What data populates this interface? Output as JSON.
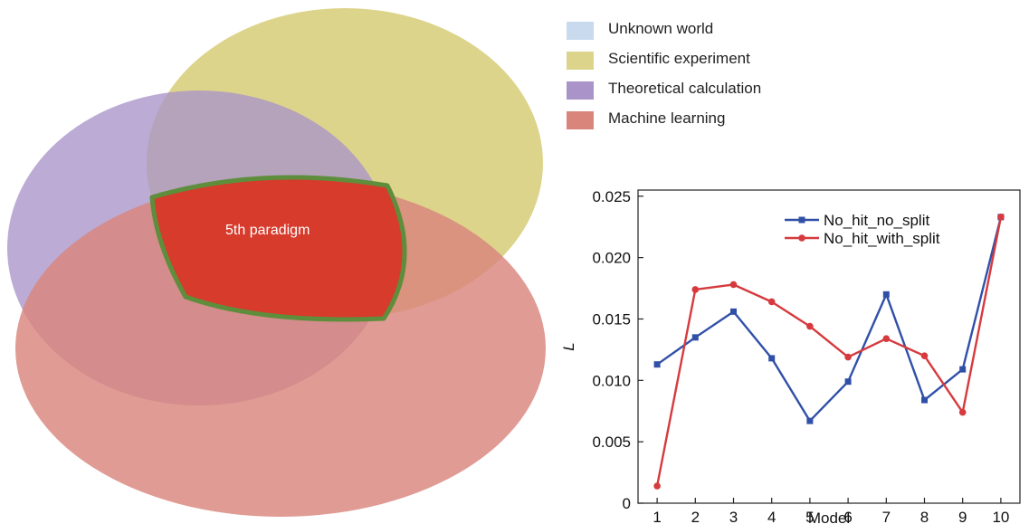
{
  "venn": {
    "sets": [
      {
        "label": "Unknown world",
        "color": "#c9d9ee"
      },
      {
        "label": "Scientific experiment",
        "color": "#ddd48c"
      },
      {
        "label": "Theoretical calculation",
        "color": "#a993c8"
      },
      {
        "label": "Machine learning",
        "color": "#d9857c"
      }
    ],
    "intersection_label": "5th paradigm",
    "intersection_fill": "#d63b2c",
    "intersection_border": "#5e8e3c"
  },
  "chart_data": {
    "type": "line",
    "xlabel": "Model",
    "ylabel": "L",
    "categories": [
      "1",
      "2",
      "3",
      "4",
      "5",
      "6",
      "7",
      "8",
      "9",
      "10"
    ],
    "x": [
      1,
      2,
      3,
      4,
      5,
      6,
      7,
      8,
      9,
      10
    ],
    "xlim": [
      0.5,
      10.5
    ],
    "ylim": [
      0,
      0.0255
    ],
    "yticks": [
      0,
      0.005,
      0.01,
      0.015,
      0.02,
      0.025
    ],
    "ytick_labels": [
      "0",
      "0.005",
      "0.010",
      "0.015",
      "0.020",
      "0.025"
    ],
    "grid": false,
    "legend_position": "top-right",
    "series": [
      {
        "name": "No_hit_no_split",
        "color": "#3050a8",
        "marker": "square",
        "values": [
          0.0113,
          0.0135,
          0.0156,
          0.0118,
          0.0067,
          0.0099,
          0.017,
          0.0084,
          0.0109,
          0.0233
        ]
      },
      {
        "name": "No_hit_with_split",
        "color": "#d63a3e",
        "marker": "circle",
        "values": [
          0.0014,
          0.0174,
          0.0178,
          0.0164,
          0.0144,
          0.0119,
          0.0134,
          0.012,
          0.0074,
          0.0233
        ]
      }
    ]
  }
}
